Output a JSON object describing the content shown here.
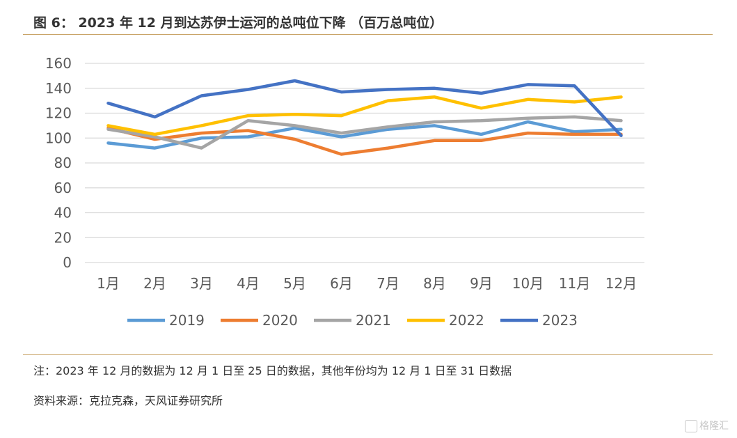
{
  "header": {
    "title": "图 6： 2023 年 12 月到达苏伊士运河的总吨位下降 （百万总吨位）"
  },
  "notes": {
    "note": "注：2023 年 12 月的数据为 12 月 1 日至 25 日的数据，其他年份均为 12 月 1 日至 31 日数据",
    "source": "资料来源：克拉克森，天风证券研究所"
  },
  "watermark": {
    "text": "格隆汇"
  },
  "chart_data": {
    "type": "line",
    "title": "",
    "xlabel": "",
    "ylabel": "",
    "categories": [
      "1月",
      "2月",
      "3月",
      "4月",
      "5月",
      "6月",
      "7月",
      "8月",
      "9月",
      "10月",
      "11月",
      "12月"
    ],
    "ylim": [
      0,
      160
    ],
    "yticks": [
      "0",
      "20",
      "40",
      "60",
      "80",
      "100",
      "120",
      "140",
      "160"
    ],
    "grid": true,
    "legend": "bottom",
    "series": [
      {
        "name": "2019",
        "color": "#5b9bd5",
        "values": [
          96,
          92,
          100,
          101,
          108,
          101,
          107,
          110,
          103,
          113,
          105,
          107
        ]
      },
      {
        "name": "2020",
        "color": "#ed7d31",
        "values": [
          108,
          99,
          104,
          106,
          99,
          87,
          92,
          98,
          98,
          104,
          103,
          103
        ]
      },
      {
        "name": "2021",
        "color": "#a5a5a5",
        "values": [
          107,
          101,
          92,
          114,
          110,
          104,
          109,
          113,
          114,
          116,
          117,
          114
        ]
      },
      {
        "name": "2022",
        "color": "#ffc000",
        "values": [
          110,
          103,
          110,
          118,
          119,
          118,
          130,
          133,
          124,
          131,
          129,
          133
        ]
      },
      {
        "name": "2023",
        "color": "#4472c4",
        "values": [
          128,
          117,
          134,
          139,
          146,
          137,
          139,
          140,
          136,
          143,
          142,
          102
        ]
      }
    ]
  }
}
